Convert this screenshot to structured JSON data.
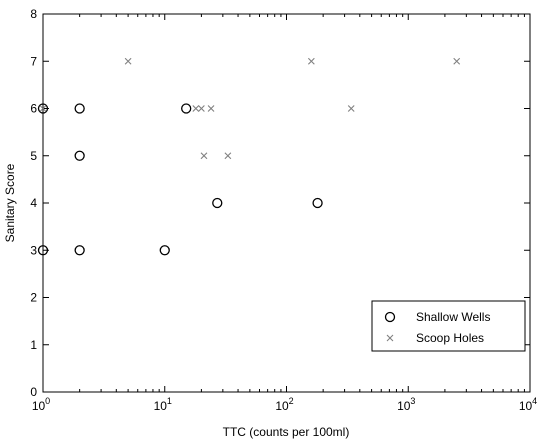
{
  "chart_data": {
    "type": "scatter",
    "xlabel": "TTC (counts per 100ml)",
    "ylabel": "Sanitary Score",
    "x_scale": "log",
    "xlim": [
      1,
      10000
    ],
    "ylim": [
      0,
      8
    ],
    "x_ticks": [
      {
        "value": 1,
        "base": "10",
        "exp": "0"
      },
      {
        "value": 10,
        "base": "10",
        "exp": "1"
      },
      {
        "value": 100,
        "base": "10",
        "exp": "2"
      },
      {
        "value": 1000,
        "base": "10",
        "exp": "3"
      },
      {
        "value": 10000,
        "base": "10",
        "exp": "4"
      }
    ],
    "y_ticks": [
      "0",
      "1",
      "2",
      "3",
      "4",
      "5",
      "6",
      "7",
      "8"
    ],
    "grid": false,
    "legend_position": "bottom-right",
    "series": [
      {
        "name": "Shallow Wells",
        "marker": "circle",
        "color": "#000000",
        "points": [
          {
            "x": 1,
            "y": 6
          },
          {
            "x": 1,
            "y": 3
          },
          {
            "x": 2,
            "y": 6
          },
          {
            "x": 2,
            "y": 5
          },
          {
            "x": 2,
            "y": 3
          },
          {
            "x": 10,
            "y": 3
          },
          {
            "x": 15,
            "y": 6
          },
          {
            "x": 27,
            "y": 4
          },
          {
            "x": 180,
            "y": 4
          }
        ]
      },
      {
        "name": "Scoop Holes",
        "marker": "x",
        "color": "#808080",
        "points": [
          {
            "x": 5,
            "y": 7
          },
          {
            "x": 160,
            "y": 7
          },
          {
            "x": 2500,
            "y": 7
          },
          {
            "x": 1,
            "y": 6
          },
          {
            "x": 18,
            "y": 6
          },
          {
            "x": 20,
            "y": 6
          },
          {
            "x": 24,
            "y": 6
          },
          {
            "x": 340,
            "y": 6
          },
          {
            "x": 21,
            "y": 5
          },
          {
            "x": 33,
            "y": 5
          }
        ]
      }
    ]
  }
}
